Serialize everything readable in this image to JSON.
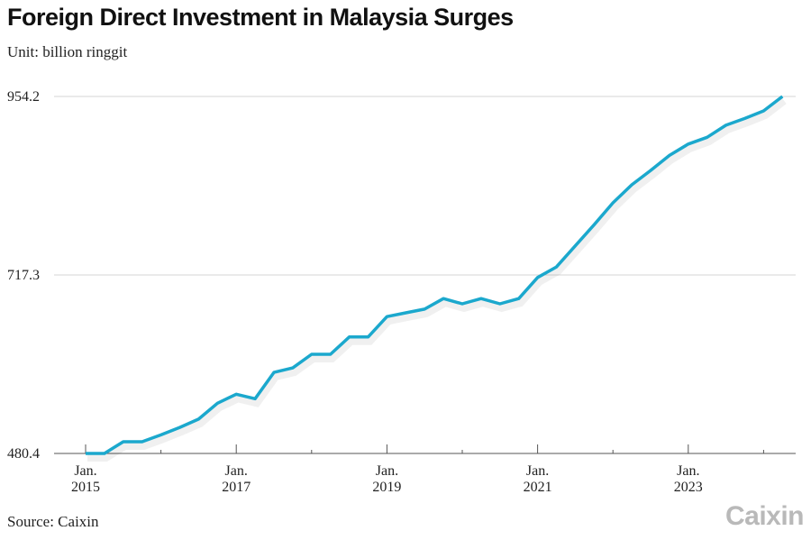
{
  "title": "Foreign Direct Investment in Malaysia Surges",
  "unit": "Unit: billion ringgit",
  "source": "Source: Caixin",
  "logo": "Caixin",
  "chart_data": {
    "type": "line",
    "title": "Foreign Direct Investment in Malaysia Surges",
    "ylabel": "Unit: billion ringgit",
    "ylim": [
      480.4,
      954.2
    ],
    "yticks": [
      "480.4",
      "717.3",
      "954.2"
    ],
    "xticks": [
      {
        "line1": "Jan.",
        "line2": "2015",
        "x": "2015-Q1"
      },
      {
        "line1": "Jan.",
        "line2": "2017",
        "x": "2017-Q1"
      },
      {
        "line1": "Jan.",
        "line2": "2019",
        "x": "2019-Q1"
      },
      {
        "line1": "Jan.",
        "line2": "2021",
        "x": "2021-Q1"
      },
      {
        "line1": "Jan.",
        "line2": "2023",
        "x": "2023-Q1"
      }
    ],
    "grid": "horizontal",
    "color": "#1ba8cd",
    "x": [
      "2015-Q1",
      "2015-Q2",
      "2015-Q3",
      "2015-Q4",
      "2016-Q1",
      "2016-Q2",
      "2016-Q3",
      "2016-Q4",
      "2017-Q1",
      "2017-Q2",
      "2017-Q3",
      "2017-Q4",
      "2018-Q1",
      "2018-Q2",
      "2018-Q3",
      "2018-Q4",
      "2019-Q1",
      "2019-Q2",
      "2019-Q3",
      "2019-Q4",
      "2020-Q1",
      "2020-Q2",
      "2020-Q3",
      "2020-Q4",
      "2021-Q1",
      "2021-Q2",
      "2021-Q3",
      "2021-Q4",
      "2022-Q1",
      "2022-Q2",
      "2022-Q3",
      "2022-Q4",
      "2023-Q1",
      "2023-Q2",
      "2023-Q3",
      "2023-Q4",
      "2024-Q1",
      "2024-Q2"
    ],
    "values": [
      480.4,
      480.4,
      496,
      496,
      505,
      515,
      526,
      547,
      559,
      553,
      588,
      594,
      612,
      612,
      635,
      635,
      662,
      667,
      672,
      686,
      679,
      686,
      679,
      686,
      714,
      728,
      756,
      784,
      813,
      837,
      856,
      876,
      891,
      900,
      916,
      925,
      935,
      954.2
    ]
  }
}
